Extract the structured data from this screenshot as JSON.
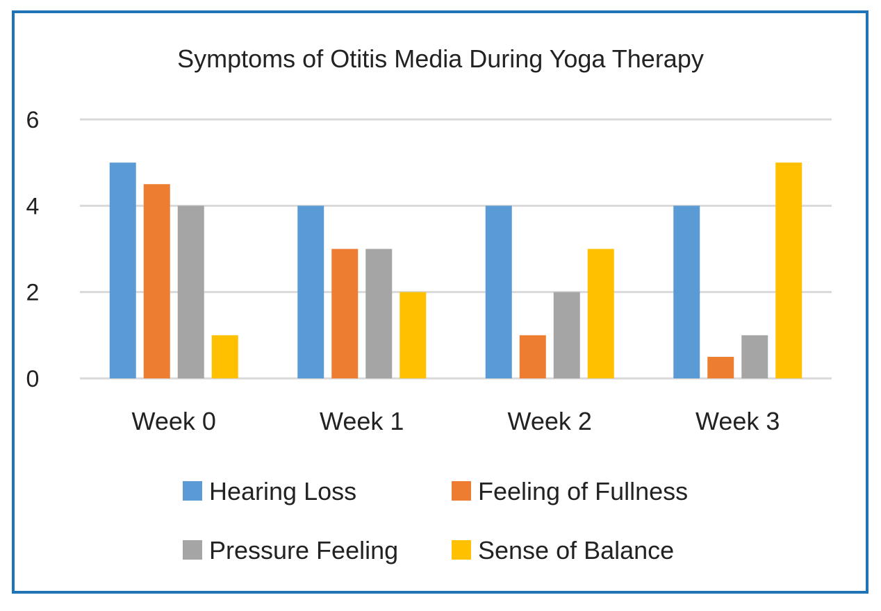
{
  "chart_data": {
    "type": "bar",
    "title": "Symptoms of Otitis Media During Yoga Therapy",
    "xlabel": "",
    "ylabel": "",
    "categories": [
      "Week 0",
      "Week 1",
      "Week 2",
      "Week 3"
    ],
    "series": [
      {
        "name": "Hearing Loss",
        "values": [
          5,
          4,
          4,
          4
        ],
        "color": "#5b9bd5"
      },
      {
        "name": "Feeling of Fullness",
        "values": [
          4.5,
          3,
          1,
          0.5
        ],
        "color": "#ed7d31"
      },
      {
        "name": "Pressure Feeling",
        "values": [
          4,
          3,
          2,
          1
        ],
        "color": "#a5a5a5"
      },
      {
        "name": "Sense of Balance",
        "values": [
          1,
          2,
          3,
          5
        ],
        "color": "#ffc000"
      }
    ],
    "ylim": [
      0,
      6
    ],
    "yticks": [
      "0",
      "2",
      "4",
      "6"
    ],
    "grid": true,
    "legend_position": "bottom",
    "frame_color": "#1f73b7",
    "grid_color": "#d9d9d9"
  }
}
